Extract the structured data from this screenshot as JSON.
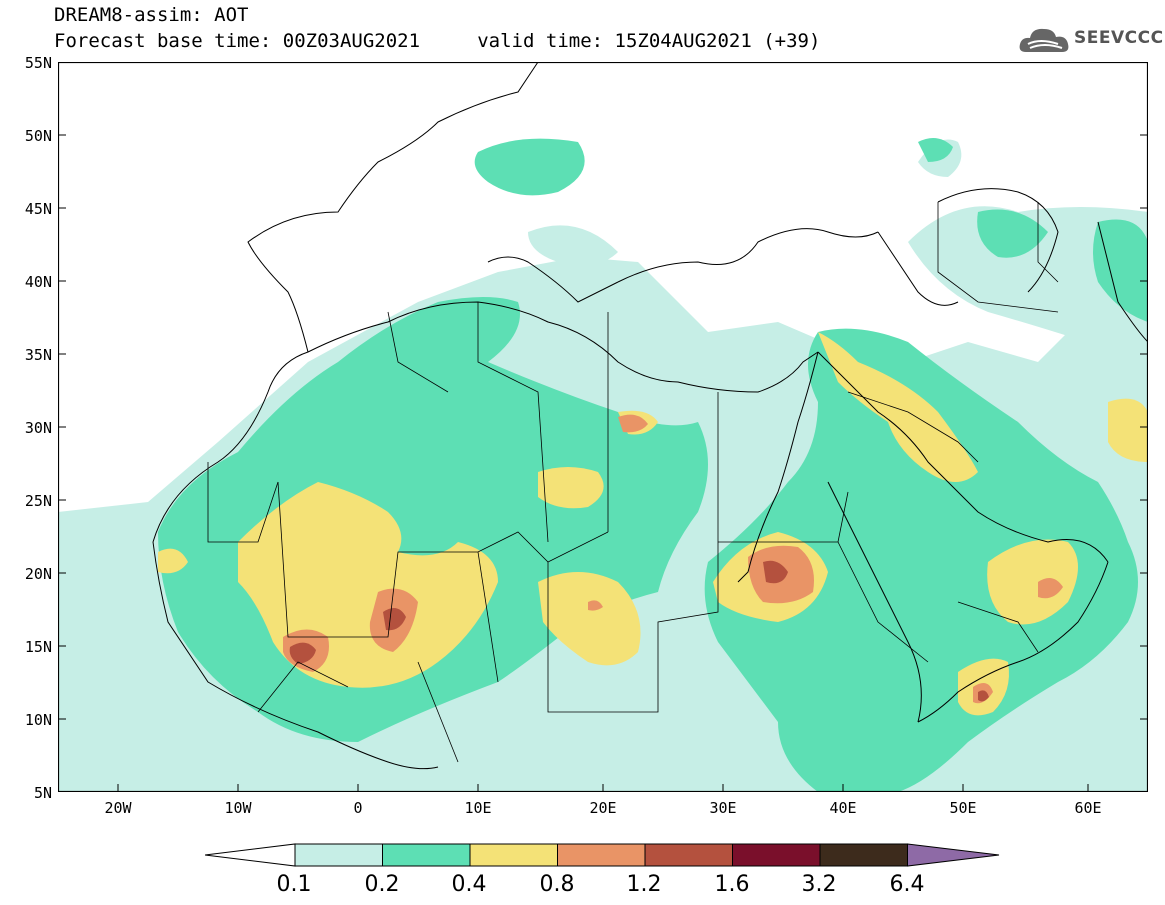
{
  "header": {
    "line1": "DREAM8-assim: AOT",
    "line2": "Forecast base time: 00Z03AUG2021     valid time: 15Z04AUG2021 (+39)"
  },
  "logo": {
    "text": "SEEVCCC",
    "icon": "cloud-icon"
  },
  "map": {
    "variable": "AOT",
    "lon_range": [
      -25,
      65
    ],
    "lat_range": [
      5,
      55
    ],
    "lat_ticks": [
      "55N",
      "50N",
      "45N",
      "40N",
      "35N",
      "30N",
      "25N",
      "20N",
      "15N",
      "10N",
      "5N"
    ],
    "lon_ticks": [
      "20W",
      "10W",
      "0",
      "10E",
      "20E",
      "30E",
      "40E",
      "50E",
      "60E"
    ]
  },
  "legend": {
    "levels": [
      "0.1",
      "0.2",
      "0.4",
      "0.8",
      "1.2",
      "1.6",
      "3.2",
      "6.4"
    ],
    "colors": [
      "#c6eee6",
      "#5ddfb4",
      "#f4e277",
      "#e99466",
      "#b4513e",
      "#7a0f2b",
      "#3d2b1c",
      "#8e6aa6"
    ],
    "extend_low_color": "#ffffff",
    "extend_high_color": "#8e6aa6"
  }
}
